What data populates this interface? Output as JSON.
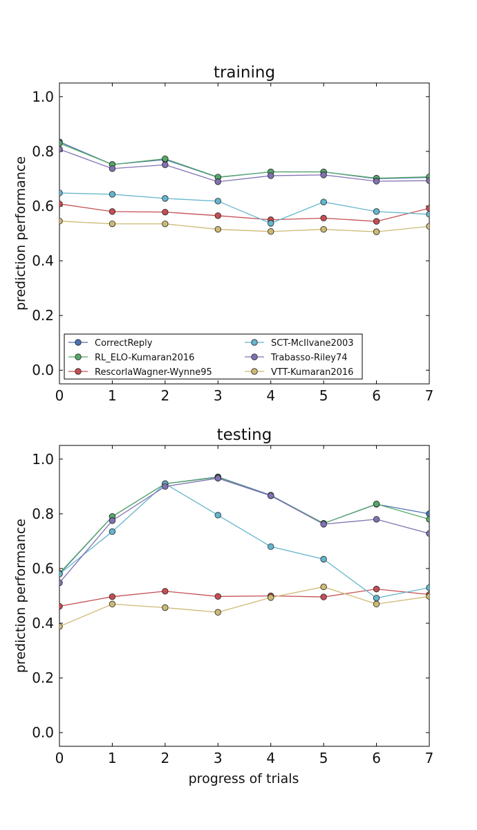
{
  "chart_data": [
    {
      "type": "line",
      "title": "training",
      "xlabel": "",
      "ylabel": "prediction performance",
      "xlim": [
        0,
        7
      ],
      "ylim": [
        -0.05,
        1.05
      ],
      "x": [
        0,
        1,
        2,
        3,
        4,
        5,
        6,
        7
      ],
      "xticks": [
        "0",
        "1",
        "2",
        "3",
        "4",
        "5",
        "6",
        "7"
      ],
      "yticks": [
        "0.0",
        "0.2",
        "0.4",
        "0.6",
        "0.8",
        "1.0"
      ],
      "legend": "lower center, 2 columns",
      "series": [
        {
          "name": "CorrectReply",
          "color": "#4c72b0",
          "values": [
            0.835,
            0.752,
            0.77,
            0.705,
            0.725,
            0.725,
            0.7,
            0.705
          ]
        },
        {
          "name": "RL_ELO-Kumaran2016",
          "color": "#55a868",
          "values": [
            0.83,
            0.752,
            0.773,
            0.706,
            0.725,
            0.725,
            0.702,
            0.707
          ]
        },
        {
          "name": "RescorlaWagner-Wynne95",
          "color": "#c44e52",
          "values": [
            0.608,
            0.58,
            0.578,
            0.565,
            0.55,
            0.556,
            0.544,
            0.592
          ]
        },
        {
          "name": "SCT-McIlvane2003",
          "color": "#64b5cd",
          "values": [
            0.648,
            0.643,
            0.628,
            0.618,
            0.537,
            0.615,
            0.58,
            0.57
          ]
        },
        {
          "name": "Trabasso-Riley74",
          "color": "#8172b2",
          "values": [
            0.808,
            0.737,
            0.751,
            0.689,
            0.711,
            0.714,
            0.691,
            0.693
          ]
        },
        {
          "name": "VTT-Kumaran2016",
          "color": "#ccb974",
          "values": [
            0.545,
            0.535,
            0.535,
            0.515,
            0.507,
            0.515,
            0.506,
            0.526
          ]
        }
      ]
    },
    {
      "type": "line",
      "title": "testing",
      "xlabel": "progress of trials",
      "ylabel": "prediction performance",
      "xlim": [
        0,
        7
      ],
      "ylim": [
        -0.05,
        1.05
      ],
      "x": [
        0,
        1,
        2,
        3,
        4,
        5,
        6,
        7
      ],
      "xticks": [
        "0",
        "1",
        "2",
        "3",
        "4",
        "5",
        "6",
        "7"
      ],
      "yticks": [
        "0.0",
        "0.2",
        "0.4",
        "0.6",
        "0.8",
        "1.0"
      ],
      "series": [
        {
          "name": "CorrectReply",
          "color": "#4c72b0",
          "values": [
            0.58,
            0.79,
            0.91,
            0.935,
            0.868,
            0.765,
            0.835,
            0.8
          ]
        },
        {
          "name": "RL_ELO-Kumaran2016",
          "color": "#55a868",
          "values": [
            0.583,
            0.79,
            0.91,
            0.933,
            0.866,
            0.765,
            0.836,
            0.78
          ]
        },
        {
          "name": "RescorlaWagner-Wynne95",
          "color": "#c44e52",
          "values": [
            0.462,
            0.497,
            0.517,
            0.498,
            0.5,
            0.496,
            0.525,
            0.505
          ]
        },
        {
          "name": "SCT-McIlvane2003",
          "color": "#64b5cd",
          "values": [
            0.58,
            0.735,
            0.91,
            0.795,
            0.68,
            0.634,
            0.492,
            0.53
          ]
        },
        {
          "name": "Trabasso-Riley74",
          "color": "#8172b2",
          "values": [
            0.548,
            0.775,
            0.9,
            0.93,
            0.866,
            0.762,
            0.78,
            0.728
          ]
        },
        {
          "name": "VTT-Kumaran2016",
          "color": "#ccb974",
          "values": [
            0.388,
            0.47,
            0.457,
            0.44,
            0.494,
            0.533,
            0.47,
            0.498
          ]
        }
      ]
    }
  ]
}
